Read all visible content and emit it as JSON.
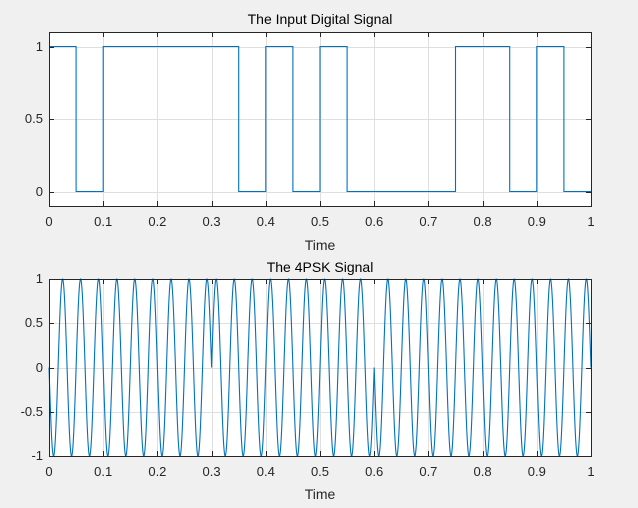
{
  "chart_data": [
    {
      "type": "line",
      "title": "The Input Digital Signal",
      "xlabel": "Time",
      "ylabel": "",
      "xlim": [
        0,
        1
      ],
      "ylim": [
        -0.1,
        1.1
      ],
      "xticks": [
        "0",
        "0.1",
        "0.2",
        "0.3",
        "0.4",
        "0.5",
        "0.6",
        "0.7",
        "0.8",
        "0.9",
        "1"
      ],
      "yticks": [
        "0",
        "0.5",
        "1"
      ],
      "grid": true,
      "line_color": "#0072bd",
      "step": true,
      "bit_duration": 0.05,
      "bits": [
        1,
        0,
        1,
        1,
        1,
        1,
        1,
        0,
        1,
        0,
        1,
        0,
        0,
        0,
        0,
        1,
        1,
        0,
        1,
        0
      ]
    },
    {
      "type": "line",
      "title": "The 4PSK Signal",
      "xlabel": "Time",
      "ylabel": "",
      "xlim": [
        0,
        1
      ],
      "ylim": [
        -1,
        1
      ],
      "xticks": [
        "0",
        "0.1",
        "0.2",
        "0.3",
        "0.4",
        "0.5",
        "0.6",
        "0.7",
        "0.8",
        "0.9",
        "1"
      ],
      "yticks": [
        "-1",
        "-0.5",
        "0",
        "0.5",
        "1"
      ],
      "grid": true,
      "line_color": "#0072bd",
      "carrier_frequency_hz": 30,
      "symbol_duration": 0.1,
      "symbol_phases_deg": [
        180,
        180,
        180,
        0,
        0,
        0,
        180,
        180,
        180,
        180
      ],
      "formula": "y = sin(2*pi*fc*t + phase)"
    }
  ]
}
